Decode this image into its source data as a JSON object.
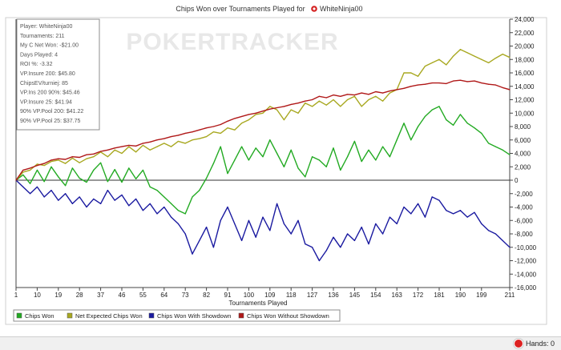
{
  "chart_data": {
    "type": "line",
    "title": "Chips Won over Tournaments Played for",
    "player_name": "WhiteNinja00",
    "watermark": "POKERTRACKER",
    "xlabel": "Tournaments Played",
    "ylabel": "",
    "x_ticks": [
      1,
      10,
      19,
      28,
      37,
      46,
      55,
      64,
      73,
      82,
      91,
      100,
      109,
      118,
      127,
      136,
      145,
      154,
      163,
      172,
      181,
      190,
      199,
      211
    ],
    "y_ticks": [
      -16000,
      -14000,
      -12000,
      -10000,
      -8000,
      -6000,
      -4000,
      -2000,
      0,
      2000,
      4000,
      6000,
      8000,
      10000,
      12000,
      14000,
      16000,
      18000,
      20000,
      22000,
      24000
    ],
    "xlim": [
      1,
      211
    ],
    "ylim": [
      -16000,
      24000
    ],
    "y_axis_position": "right",
    "grid": false,
    "legend_position": "bottom",
    "stats": [
      "Player: WhiteNinja00",
      "Tournaments: 211",
      "My C Net Won: -$21.00",
      "Days Played: 4",
      "ROI %: -3.32",
      "VP.Insure 200: $45.80",
      "ChipsEV/turniej: 85",
      "VP.Ins 200 90%: $45.46",
      "VP.Insure 25: $41.94",
      "90% VP.Pool 200: $41.22",
      "90% VP.Pool 25: $37.75"
    ],
    "series": [
      {
        "name": "Chips Won",
        "color": "#22aa22",
        "x": [
          1,
          4,
          7,
          10,
          13,
          16,
          19,
          22,
          25,
          28,
          31,
          34,
          37,
          40,
          43,
          46,
          49,
          52,
          55,
          58,
          61,
          64,
          67,
          70,
          73,
          76,
          79,
          82,
          85,
          88,
          91,
          94,
          97,
          100,
          103,
          106,
          109,
          112,
          115,
          118,
          121,
          124,
          127,
          130,
          133,
          136,
          139,
          142,
          145,
          148,
          151,
          154,
          157,
          160,
          163,
          166,
          169,
          172,
          175,
          178,
          181,
          184,
          187,
          190,
          193,
          196,
          199,
          202,
          205,
          208,
          211
        ],
        "y": [
          0,
          800,
          -500,
          1500,
          -200,
          2000,
          500,
          -800,
          1800,
          300,
          -300,
          1500,
          2600,
          -200,
          1600,
          -300,
          1800,
          200,
          1500,
          -1000,
          -1500,
          -2500,
          -3500,
          -4500,
          -5000,
          -2500,
          -1500,
          300,
          2500,
          5000,
          1000,
          3000,
          5000,
          3000,
          4800,
          3500,
          6000,
          4000,
          2000,
          4500,
          1800,
          500,
          3500,
          3000,
          2000,
          4800,
          1500,
          3500,
          5800,
          2800,
          4500,
          3000,
          5000,
          3500,
          6000,
          8500,
          6000,
          8000,
          9500,
          10500,
          11000,
          9000,
          8200,
          9800,
          8500,
          7800,
          7000,
          5500,
          5000,
          4500,
          3800
        ]
      },
      {
        "name": "Net Expected Chips Won",
        "color": "#a8a820",
        "x": [
          1,
          4,
          7,
          10,
          13,
          16,
          19,
          22,
          25,
          28,
          31,
          34,
          37,
          40,
          43,
          46,
          49,
          52,
          55,
          58,
          61,
          64,
          67,
          70,
          73,
          76,
          79,
          82,
          85,
          88,
          91,
          94,
          97,
          100,
          103,
          106,
          109,
          112,
          115,
          118,
          121,
          124,
          127,
          130,
          133,
          136,
          139,
          142,
          145,
          148,
          151,
          154,
          157,
          160,
          163,
          166,
          169,
          172,
          175,
          178,
          181,
          184,
          187,
          190,
          193,
          196,
          199,
          202,
          205,
          208,
          211
        ],
        "y": [
          0,
          1200,
          1500,
          2400,
          2200,
          2800,
          3000,
          2500,
          3300,
          2600,
          3200,
          3500,
          4200,
          3500,
          4500,
          4000,
          5000,
          4200,
          5200,
          4500,
          5000,
          5500,
          5000,
          5800,
          5500,
          6000,
          6200,
          6500,
          7200,
          7000,
          7800,
          7500,
          8500,
          9000,
          9800,
          10000,
          11000,
          10500,
          9000,
          10500,
          10000,
          11500,
          11000,
          11800,
          11200,
          12000,
          11000,
          12000,
          12500,
          11000,
          12000,
          12500,
          11800,
          13000,
          13500,
          16000,
          16000,
          15500,
          17000,
          17500,
          18000,
          17200,
          18500,
          19500,
          19000,
          18500,
          18000,
          17500,
          18200,
          18800,
          18300
        ]
      },
      {
        "name": "Chips Won With Showdown",
        "color": "#1a1aa0",
        "x": [
          1,
          4,
          7,
          10,
          13,
          16,
          19,
          22,
          25,
          28,
          31,
          34,
          37,
          40,
          43,
          46,
          49,
          52,
          55,
          58,
          61,
          64,
          67,
          70,
          73,
          76,
          79,
          82,
          85,
          88,
          91,
          94,
          97,
          100,
          103,
          106,
          109,
          112,
          115,
          118,
          121,
          124,
          127,
          130,
          133,
          136,
          139,
          142,
          145,
          148,
          151,
          154,
          157,
          160,
          163,
          166,
          169,
          172,
          175,
          178,
          181,
          184,
          187,
          190,
          193,
          196,
          199,
          202,
          205,
          208,
          211
        ],
        "y": [
          0,
          -1000,
          -2000,
          -1000,
          -2500,
          -1500,
          -3000,
          -2000,
          -3500,
          -2500,
          -4000,
          -2800,
          -3500,
          -1500,
          -3000,
          -2200,
          -3800,
          -2800,
          -4500,
          -3500,
          -5000,
          -4000,
          -5500,
          -6500,
          -8000,
          -11000,
          -9000,
          -7000,
          -10000,
          -6000,
          -4000,
          -6500,
          -9000,
          -6000,
          -8500,
          -5500,
          -7500,
          -3500,
          -6500,
          -8000,
          -6000,
          -9500,
          -10000,
          -12000,
          -10500,
          -8500,
          -10000,
          -8000,
          -9000,
          -7000,
          -9500,
          -6500,
          -8000,
          -5500,
          -6500,
          -4000,
          -5000,
          -3500,
          -5500,
          -2500,
          -3000,
          -4500,
          -5000,
          -4500,
          -5500,
          -4800,
          -6500,
          -7500,
          -8000,
          -9000,
          -10000
        ]
      },
      {
        "name": "Chips Won Without Showdown",
        "color": "#b01818",
        "x": [
          1,
          4,
          7,
          10,
          13,
          16,
          19,
          22,
          25,
          28,
          31,
          34,
          37,
          40,
          43,
          46,
          49,
          52,
          55,
          58,
          61,
          64,
          67,
          70,
          73,
          76,
          79,
          82,
          85,
          88,
          91,
          94,
          97,
          100,
          103,
          106,
          109,
          112,
          115,
          118,
          121,
          124,
          127,
          130,
          133,
          136,
          139,
          142,
          145,
          148,
          151,
          154,
          157,
          160,
          163,
          166,
          169,
          172,
          175,
          178,
          181,
          184,
          187,
          190,
          193,
          196,
          199,
          202,
          205,
          208,
          211
        ],
        "y": [
          0,
          1500,
          1800,
          2200,
          2500,
          3000,
          3200,
          3100,
          3500,
          3400,
          3800,
          3900,
          4300,
          4500,
          4800,
          5000,
          5200,
          5100,
          5500,
          5700,
          6000,
          6200,
          6500,
          6700,
          7000,
          7200,
          7500,
          7800,
          8000,
          8300,
          8800,
          9200,
          9500,
          9800,
          10000,
          10300,
          10600,
          10800,
          11000,
          11300,
          11500,
          11800,
          12000,
          12500,
          12300,
          12700,
          12500,
          12800,
          12700,
          13000,
          12800,
          13200,
          13000,
          13300,
          13500,
          13700,
          14000,
          14200,
          14300,
          14500,
          14500,
          14400,
          14800,
          14900,
          14700,
          14800,
          14500,
          14300,
          14200,
          13800,
          13500
        ]
      }
    ]
  },
  "statusbar": {
    "hands_label": "Hands: 0"
  }
}
